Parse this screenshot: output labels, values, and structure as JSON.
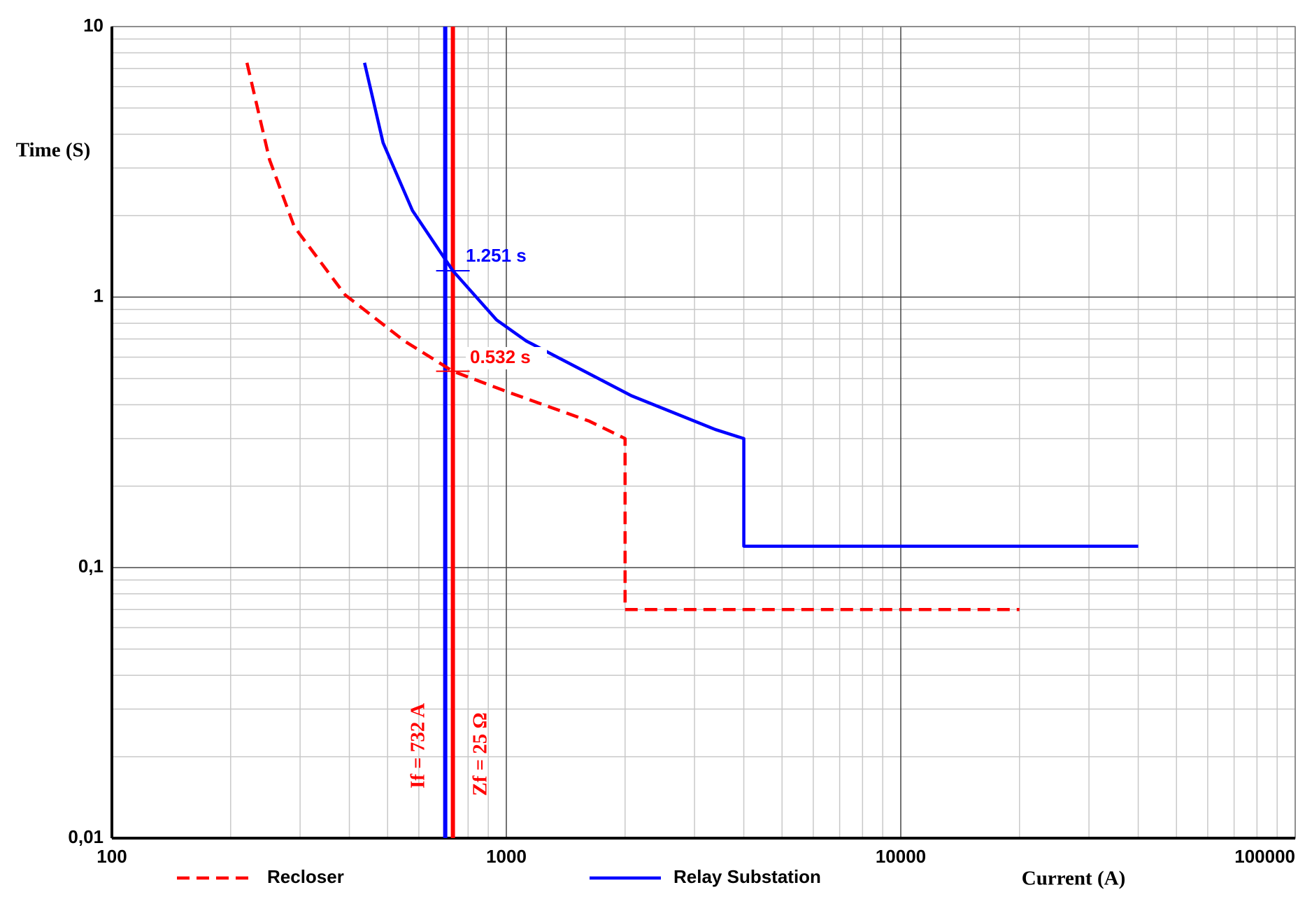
{
  "chart_data": {
    "type": "line",
    "x_label": "Current (A)",
    "y_label": "Time (S)",
    "xscale": "log",
    "yscale": "log",
    "xlim": [
      100,
      100000
    ],
    "ylim": [
      0.01,
      10
    ],
    "xticks": [
      100,
      1000,
      10000,
      100000
    ],
    "yticks": [
      10,
      1,
      {
        "value": 0.1,
        "label": "0,1"
      },
      {
        "value": 0.01,
        "label": "0,01"
      }
    ],
    "xminorticks": [
      200,
      300,
      400,
      500,
      600,
      700,
      800,
      900,
      2000,
      3000,
      4000,
      5000,
      6000,
      7000,
      8000,
      9000,
      20000,
      30000,
      40000,
      50000,
      60000,
      70000,
      80000,
      90000
    ],
    "yminorticks": [
      0.02,
      0.03,
      0.04,
      0.05,
      0.06,
      0.07,
      0.08,
      0.09,
      0.2,
      0.3,
      0.4,
      0.5,
      0.6,
      0.7,
      0.8,
      0.9,
      2,
      3,
      4,
      5,
      6,
      7,
      8,
      9
    ],
    "grid": true,
    "series": [
      {
        "name": "Recloser",
        "color": "#ff0000",
        "style": "dashed",
        "x": [
          220,
          251,
          290,
          390,
          551,
          732,
          1000,
          1622,
          2000,
          2000,
          20000
        ],
        "values": [
          7.35,
          3.22,
          1.82,
          1.02,
          0.689,
          0.532,
          0.448,
          0.348,
          0.3,
          0.07,
          0.07
        ]
      },
      {
        "name": "Relay Substation",
        "color": "#0000ff",
        "style": "solid",
        "x": [
          437,
          487,
          578,
          732,
          944,
          1122,
          2075,
          3388,
          4000,
          4000,
          40000
        ],
        "values": [
          7.35,
          3.72,
          2.09,
          1.251,
          0.824,
          0.689,
          0.432,
          0.324,
          0.3,
          0.12,
          0.12
        ]
      }
    ],
    "markers": [
      {
        "x": 700,
        "color": "#0000ff"
      },
      {
        "x": 732,
        "color": "#ff0000"
      }
    ],
    "annotations": [
      {
        "text": "1.251 s",
        "color": "#0000ff"
      },
      {
        "text": "0.532 s",
        "color": "#ff0000"
      },
      {
        "text": "If = 732 A",
        "color": "#ff0000"
      },
      {
        "text": "Zf = 25 Ω",
        "color": "#ff0000"
      }
    ]
  }
}
